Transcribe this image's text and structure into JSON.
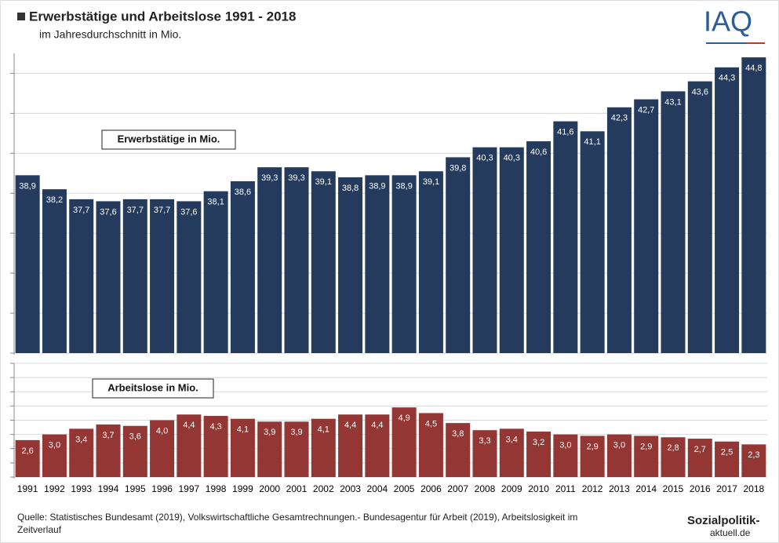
{
  "title": "Erwerbstätige und Arbeitslose 1991 - 2018",
  "subtitle": "im Jahresdurchschnitt in Mio.",
  "source": [
    "Quelle: Statistisches Bundesamt (2019), Volkswirtschaftliche Gesamtrechnungen.- Bundesagentur für Arbeit (2019), Arbeitslosigkeit im",
    "Zeitverlauf"
  ],
  "logo": "IAQ",
  "logo2": [
    "Sozialpolitik-",
    "aktuell.de"
  ],
  "chart_data": [
    {
      "type": "bar",
      "label": "Erwerbstätige in Mio.",
      "color": "#253b5e",
      "values": [
        38.9,
        38.2,
        37.7,
        37.6,
        37.7,
        37.7,
        37.6,
        38.1,
        38.6,
        39.3,
        39.3,
        39.1,
        38.8,
        38.9,
        38.9,
        39.1,
        39.8,
        40.3,
        40.3,
        40.6,
        41.6,
        41.1,
        42.3,
        42.7,
        43.1,
        43.6,
        44.3,
        44.8
      ],
      "value_labels": [
        "38,9",
        "38,2",
        "37,7",
        "37,6",
        "37,7",
        "37,7",
        "37,6",
        "38,1",
        "38,6",
        "39,3",
        "39,3",
        "39,1",
        "38,8",
        "38,9",
        "38,9",
        "39,1",
        "39,8",
        "40,3",
        "40,3",
        "40,6",
        "41,6",
        "41,1",
        "42,3",
        "42,7",
        "43,1",
        "43,6",
        "44,3",
        "44,8"
      ],
      "ylim": [
        30,
        45
      ],
      "yticks": [
        30,
        32,
        34,
        36,
        38,
        40,
        42,
        44
      ],
      "grid": true
    },
    {
      "type": "bar",
      "label": "Arbeitslose in Mio.",
      "color": "#943634",
      "categories": [
        "1991",
        "1992",
        "1993",
        "1994",
        "1995",
        "1996",
        "1997",
        "1998",
        "1999",
        "2000",
        "2001",
        "2002",
        "2003",
        "2004",
        "2005",
        "2006",
        "2007",
        "2008",
        "2009",
        "2010",
        "2011",
        "2012",
        "2013",
        "2014",
        "2015",
        "2016",
        "2017",
        "2018"
      ],
      "values": [
        2.6,
        3.0,
        3.4,
        3.7,
        3.6,
        4.0,
        4.4,
        4.3,
        4.1,
        3.9,
        3.9,
        4.1,
        4.4,
        4.4,
        4.9,
        4.5,
        3.8,
        3.3,
        3.4,
        3.2,
        3.0,
        2.9,
        3.0,
        2.9,
        2.8,
        2.7,
        2.5,
        2.3
      ],
      "value_labels": [
        "2,6",
        "3,0",
        "3,4",
        "3,7",
        "3,6",
        "4,0",
        "4,4",
        "4,3",
        "4,1",
        "3,9",
        "3,9",
        "4,1",
        "4,4",
        "4,4",
        "4,9",
        "4,5",
        "3,8",
        "3,3",
        "3,4",
        "3,2",
        "3,0",
        "2,9",
        "3,0",
        "2,9",
        "2,8",
        "2,7",
        "2,5",
        "2,3"
      ],
      "ylim": [
        0,
        8
      ],
      "yticks": [
        0,
        1,
        2,
        3,
        4,
        5,
        6,
        7,
        8
      ],
      "grid": true
    }
  ]
}
